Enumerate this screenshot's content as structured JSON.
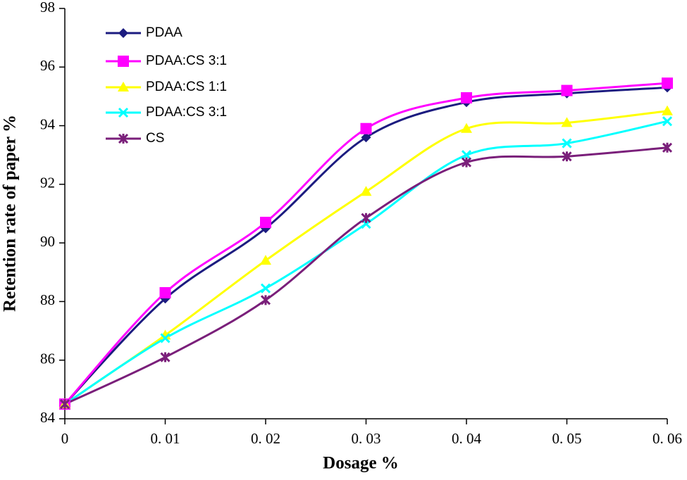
{
  "chart_data": {
    "type": "line",
    "x_label": "Dosage %",
    "y_label": "Retention rate of paper %",
    "x": [
      0,
      0.01,
      0.02,
      0.03,
      0.04,
      0.05,
      0.06
    ],
    "xlim": [
      0,
      0.06
    ],
    "xticks": [
      0,
      {
        "value": 0.01,
        "label": "0. 01"
      },
      {
        "value": 0.02,
        "label": "0. 02"
      },
      {
        "value": 0.03,
        "label": "0. 03"
      },
      {
        "value": 0.04,
        "label": "0. 04"
      },
      {
        "value": 0.05,
        "label": "0. 05"
      },
      {
        "value": 0.06,
        "label": "0. 06"
      }
    ],
    "ylim": [
      84,
      98
    ],
    "yticks": [
      84,
      86,
      88,
      90,
      92,
      94,
      96,
      98
    ],
    "grid": false,
    "legend": "top-left",
    "series": [
      {
        "name": "PDAA",
        "color": "#1c1c80",
        "marker": "diamond",
        "values": [
          84.5,
          88.1,
          90.5,
          93.6,
          94.8,
          95.1,
          95.3
        ]
      },
      {
        "name": "PDAA:CS 3:1",
        "color": "#ff00ff",
        "marker": "square",
        "values": [
          84.5,
          88.3,
          90.7,
          93.9,
          94.95,
          95.2,
          95.45
        ]
      },
      {
        "name": "PDAA:CS 1:1",
        "color": "#ffff00",
        "marker": "triangle",
        "values": [
          84.5,
          86.85,
          89.4,
          91.75,
          93.9,
          94.1,
          94.5
        ]
      },
      {
        "name": "PDAA:CS 3:1",
        "color": "#00ffff",
        "marker": "x",
        "values": [
          84.5,
          86.75,
          88.45,
          90.65,
          93.0,
          93.4,
          94.15
        ]
      },
      {
        "name": "CS",
        "color": "#7a1f7a",
        "marker": "star",
        "values": [
          84.5,
          86.1,
          88.05,
          90.85,
          92.75,
          92.95,
          93.25
        ]
      }
    ]
  }
}
